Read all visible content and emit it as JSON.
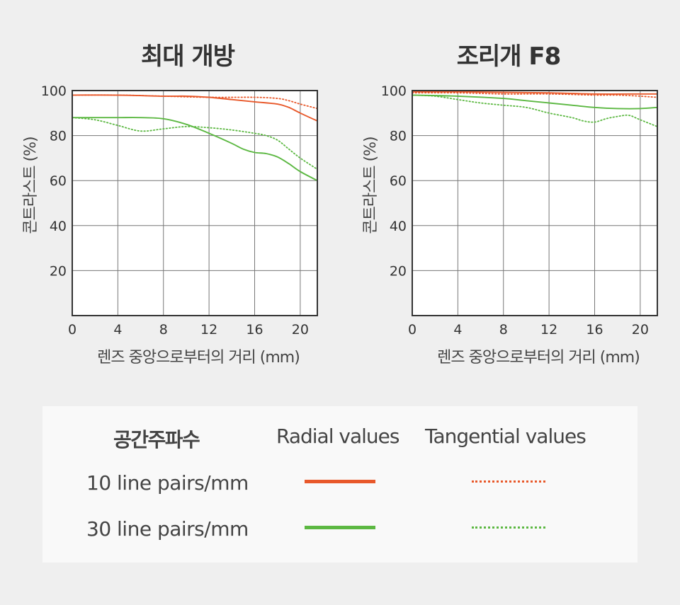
{
  "chart_data": [
    {
      "type": "line",
      "title": "최대 개방",
      "xlabel": "렌즈 중앙으로부터의 거리 (mm)",
      "ylabel": "콘트라스트 (%)",
      "xlim": [
        0,
        21.5
      ],
      "ylim": [
        0,
        100
      ],
      "xticks": [
        0,
        4,
        8,
        12,
        16,
        20
      ],
      "yticks": [
        20,
        40,
        60,
        80,
        100
      ],
      "grid": true,
      "series": [
        {
          "name": "10 line pairs/mm",
          "kind": "radial",
          "color": "#e8582a",
          "dash": "solid",
          "x": [
            0,
            4,
            8,
            10,
            12,
            14,
            16,
            18,
            19,
            20,
            21.5
          ],
          "y": [
            98,
            98,
            97.5,
            97.5,
            97,
            96,
            95,
            94,
            92.5,
            90,
            86.5
          ]
        },
        {
          "name": "10 line pairs/mm",
          "kind": "tangential",
          "color": "#e8582a",
          "dash": "dotted",
          "x": [
            0,
            4,
            8,
            12,
            16,
            18,
            19,
            20,
            21.5
          ],
          "y": [
            98,
            98,
            97.5,
            97,
            97,
            96.5,
            95.5,
            94,
            92
          ]
        },
        {
          "name": "30 line pairs/mm",
          "kind": "radial",
          "color": "#5cb842",
          "dash": "solid",
          "x": [
            0,
            2,
            4,
            6,
            8,
            10,
            12,
            14,
            15,
            16,
            17,
            18,
            19,
            20,
            21.5
          ],
          "y": [
            88,
            88,
            88,
            88,
            87.5,
            85,
            81,
            76.5,
            74,
            72.5,
            72,
            70.5,
            67.5,
            64,
            60
          ]
        },
        {
          "name": "30 line pairs/mm",
          "kind": "tangential",
          "color": "#5cb842",
          "dash": "dotted",
          "x": [
            0,
            2,
            4,
            6,
            8,
            10,
            12,
            14,
            16,
            17,
            18,
            19,
            20,
            21.5
          ],
          "y": [
            88,
            87,
            84.5,
            82,
            83,
            84,
            83.5,
            82.5,
            81,
            80,
            78,
            74,
            70,
            65
          ]
        }
      ]
    },
    {
      "type": "line",
      "title": "조리개 F8",
      "xlabel": "렌즈 중앙으로부터의 거리 (mm)",
      "ylabel": "콘트라스트 (%)",
      "xlim": [
        0,
        21.5
      ],
      "ylim": [
        0,
        100
      ],
      "xticks": [
        0,
        4,
        8,
        12,
        16,
        20
      ],
      "yticks": [
        20,
        40,
        60,
        80,
        100
      ],
      "grid": true,
      "series": [
        {
          "name": "10 line pairs/mm",
          "kind": "radial",
          "color": "#e8582a",
          "dash": "solid",
          "x": [
            0,
            4,
            8,
            12,
            16,
            20,
            21.5
          ],
          "y": [
            99.5,
            99.5,
            99.2,
            99,
            98.5,
            98.5,
            98.5
          ]
        },
        {
          "name": "10 line pairs/mm",
          "kind": "tangential",
          "color": "#e8582a",
          "dash": "dotted",
          "x": [
            0,
            4,
            8,
            12,
            16,
            18,
            20,
            21.5
          ],
          "y": [
            99,
            99,
            98.5,
            98.5,
            98,
            98,
            97.5,
            97
          ]
        },
        {
          "name": "30 line pairs/mm",
          "kind": "radial",
          "color": "#5cb842",
          "dash": "solid",
          "x": [
            0,
            4,
            8,
            10,
            12,
            14,
            16,
            18,
            20,
            21.5
          ],
          "y": [
            98,
            97.5,
            96.5,
            95.5,
            94.5,
            93.5,
            92.5,
            92,
            92,
            92.5
          ]
        },
        {
          "name": "30 line pairs/mm",
          "kind": "tangential",
          "color": "#5cb842",
          "dash": "dotted",
          "x": [
            0,
            2,
            4,
            6,
            8,
            10,
            12,
            14,
            15,
            16,
            17,
            18,
            19,
            20,
            21.5
          ],
          "y": [
            98,
            97.5,
            96,
            94.5,
            93.5,
            92.5,
            90,
            88,
            86.5,
            86,
            87.5,
            88.5,
            89,
            87,
            84
          ]
        }
      ]
    }
  ],
  "legend": {
    "header_frequency": "공간주파수",
    "header_radial": "Radial values",
    "header_tangential": "Tangential values",
    "rows": [
      {
        "label": "10 line pairs/mm",
        "color": "#e8582a"
      },
      {
        "label": "30 line pairs/mm",
        "color": "#5cb842"
      }
    ]
  }
}
